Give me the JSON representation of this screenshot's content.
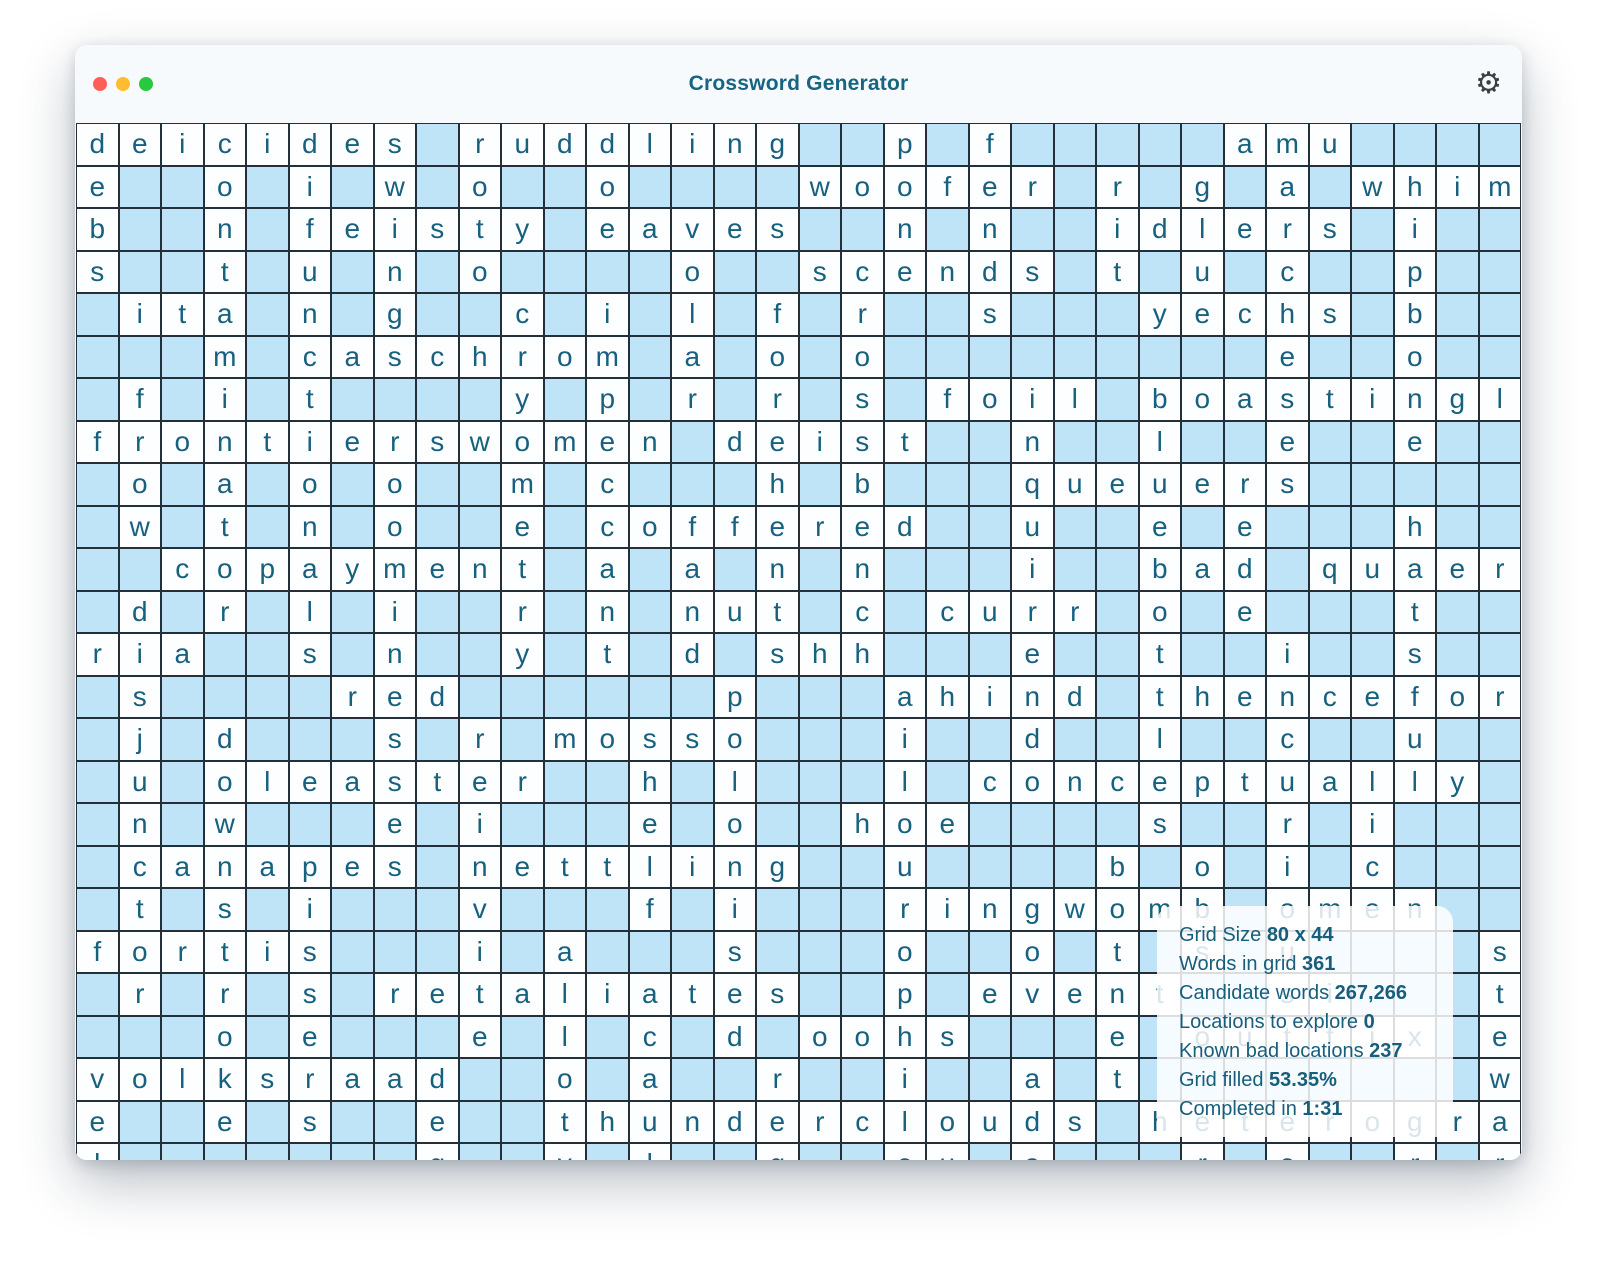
{
  "window": {
    "title": "Crossword Generator"
  },
  "icons": {
    "gear": "⚙"
  },
  "grid": {
    "visible_cols": 34,
    "visible_rows": 25,
    "blocked_char": ".",
    "cells": [
      "deicides.ruddling..p.f.....amu....",
      "e..o.i.w.o..o....woofer.r.g.a.whim",
      "b..n.feisty.eaves..n.n..idlers.i..",
      "s..t.u.n.o....o..scends.t.u.c..p..",
      ".ita.n.g..c.i.l.f.r..s...yechs.b..",
      "...m.caschrom.a.o.o.........e..o..",
      ".f.i.t....y.p.r.r.s.foil.boastingl",
      "frontierswomen.deist..n..l..e..e..",
      ".o.a.o.o..m.c...h.b...queuers.....",
      ".w.t.n.o..e.coffered..u..e.e...h..",
      "..copayment.a.a.n.n...i..bad.quaer",
      ".d.r.l.i..r.n.nut.c.curr.o.e...t..",
      "ria..s.n..y.t.d.shh...e..t..i..s..",
      ".s....red......p...ahind.thencefor",
      ".j.d...s.r.mosso...i..d..l..c..u..",
      ".u.oleaster..h.l...l.conceptually.",
      ".n.w...e.i...e.o..hoe....s..r.i...",
      ".canapes.nettling..u....b.o.i.c...",
      ".t.s.i...v...f.i...ringwomb.omen..",
      "fortis...i.a...s...o..o.t.s.u....s",
      ".r.r.s.retaliates..p.event..si...t",
      "...o.e...e.l.c.d.oohs...e.outfix.e",
      "volksraad..o.a..r..i..a.t........w",
      "e..e.s..e..thunderclouds.heterogra",
      "l.......g..v.l..g..eu.a...r.e..r.r"
    ]
  },
  "stats": {
    "lines": [
      {
        "label": "Grid Size",
        "value": "80 x 44"
      },
      {
        "label": "Words in grid",
        "value": "361"
      },
      {
        "label": "Candidate words",
        "value": "267,266"
      },
      {
        "label": "Locations to explore",
        "value": "0"
      },
      {
        "label": "Known bad locations",
        "value": "237"
      },
      {
        "label": "Grid filled",
        "value": "53.35%"
      },
      {
        "label": "Completed in",
        "value": "1:31"
      }
    ]
  },
  "colors": {
    "letter_text": "#17617f",
    "blocked_cell": "#bfe3f7",
    "open_cell": "#fdfeff",
    "cell_border": "#243039",
    "title_text": "#176582",
    "panel_text": "#175e7d",
    "traffic_red": "#ff5f57",
    "traffic_yellow": "#febc2e",
    "traffic_green": "#28c840"
  }
}
